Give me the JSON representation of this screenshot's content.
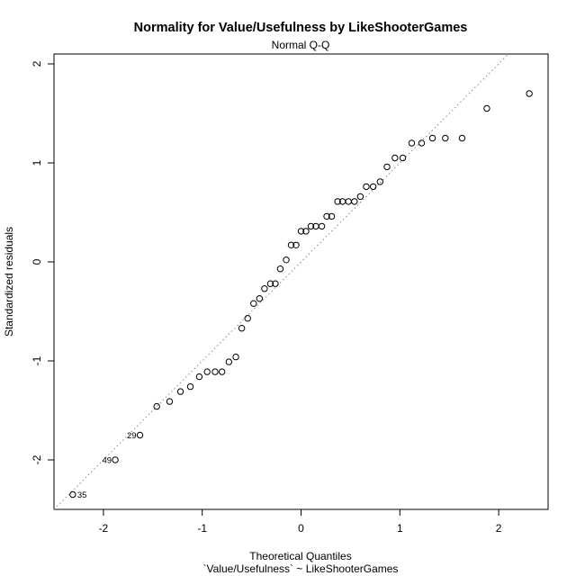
{
  "chart_data": {
    "type": "scatter",
    "title": "Normality for Value/Usefulness by LikeShooterGames",
    "subtitle": "Normal Q-Q",
    "xlabel": "Theoretical Quantiles",
    "xlabel2": "`Value/Usefulness` ~ LikeShooterGames",
    "ylabel": "Standardized residuals",
    "xlim": [
      -2.5,
      2.5
    ],
    "ylim": [
      -2.5,
      2.1
    ],
    "x_ticks": [
      -2,
      -1,
      0,
      1,
      2
    ],
    "x_tick_labels": [
      "-2",
      "-1",
      "0",
      "1",
      "2"
    ],
    "y_ticks": [
      -2,
      -1,
      0,
      1,
      2
    ],
    "y_tick_labels": [
      "-2",
      "-1",
      "0",
      "1",
      "2"
    ],
    "grid": false,
    "reference_line": {
      "slope": 1,
      "intercept": 0,
      "style": "dotted",
      "color": "#888888"
    },
    "points": [
      {
        "x": -2.31,
        "y": -2.35,
        "label": "35"
      },
      {
        "x": -1.88,
        "y": -2.0,
        "label": "49"
      },
      {
        "x": -1.63,
        "y": -1.75,
        "label": "29"
      },
      {
        "x": -1.46,
        "y": -1.46
      },
      {
        "x": -1.33,
        "y": -1.41
      },
      {
        "x": -1.22,
        "y": -1.31
      },
      {
        "x": -1.12,
        "y": -1.26
      },
      {
        "x": -1.03,
        "y": -1.16
      },
      {
        "x": -0.95,
        "y": -1.11
      },
      {
        "x": -0.87,
        "y": -1.11
      },
      {
        "x": -0.8,
        "y": -1.11
      },
      {
        "x": -0.73,
        "y": -1.01
      },
      {
        "x": -0.66,
        "y": -0.96
      },
      {
        "x": -0.6,
        "y": -0.67
      },
      {
        "x": -0.54,
        "y": -0.57
      },
      {
        "x": -0.48,
        "y": -0.42
      },
      {
        "x": -0.42,
        "y": -0.37
      },
      {
        "x": -0.37,
        "y": -0.27
      },
      {
        "x": -0.31,
        "y": -0.22
      },
      {
        "x": -0.26,
        "y": -0.22
      },
      {
        "x": -0.21,
        "y": -0.07
      },
      {
        "x": -0.15,
        "y": 0.02
      },
      {
        "x": -0.1,
        "y": 0.17
      },
      {
        "x": -0.05,
        "y": 0.17
      },
      {
        "x": 0.0,
        "y": 0.31
      },
      {
        "x": 0.05,
        "y": 0.31
      },
      {
        "x": 0.1,
        "y": 0.36
      },
      {
        "x": 0.15,
        "y": 0.36
      },
      {
        "x": 0.21,
        "y": 0.36
      },
      {
        "x": 0.26,
        "y": 0.46
      },
      {
        "x": 0.31,
        "y": 0.46
      },
      {
        "x": 0.37,
        "y": 0.61
      },
      {
        "x": 0.42,
        "y": 0.61
      },
      {
        "x": 0.48,
        "y": 0.61
      },
      {
        "x": 0.54,
        "y": 0.61
      },
      {
        "x": 0.6,
        "y": 0.66
      },
      {
        "x": 0.66,
        "y": 0.76
      },
      {
        "x": 0.73,
        "y": 0.76
      },
      {
        "x": 0.8,
        "y": 0.81
      },
      {
        "x": 0.87,
        "y": 0.96
      },
      {
        "x": 0.95,
        "y": 1.05
      },
      {
        "x": 1.03,
        "y": 1.05
      },
      {
        "x": 1.12,
        "y": 1.2
      },
      {
        "x": 1.22,
        "y": 1.2
      },
      {
        "x": 1.33,
        "y": 1.25
      },
      {
        "x": 1.46,
        "y": 1.25
      },
      {
        "x": 1.63,
        "y": 1.25
      },
      {
        "x": 1.88,
        "y": 1.55
      },
      {
        "x": 2.31,
        "y": 1.7
      }
    ]
  }
}
